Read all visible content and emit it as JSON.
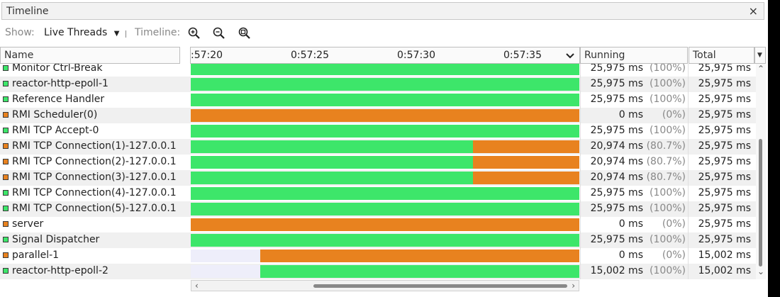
{
  "panel": {
    "title": "Timeline",
    "close_label": "×"
  },
  "toolbar": {
    "show_label": "Show:",
    "show_value": "Live Threads",
    "timeline_label": "Timeline:",
    "zoom_in": "zoom-in-icon",
    "zoom_out": "zoom-out-icon",
    "zoom_fit": "zoom-fit-icon"
  },
  "columns": {
    "name": "Name",
    "running": "Running",
    "total": "Total",
    "ticks": [
      ":57:20",
      "0:57:25",
      "0:57:30",
      "0:57:35"
    ]
  },
  "colors": {
    "running": "#3de66a",
    "other": "#e8821f"
  },
  "rows": [
    {
      "name": "Monitor Ctrl-Break",
      "state": "green",
      "running": "25,975 ms",
      "pct": "(100%)",
      "total": "25,975 ms",
      "start": 0,
      "green_end": 1
    },
    {
      "name": "reactor-http-epoll-1",
      "state": "green",
      "running": "25,975 ms",
      "pct": "(100%)",
      "total": "25,975 ms",
      "start": 0,
      "green_end": 1
    },
    {
      "name": "Reference Handler",
      "state": "green",
      "running": "25,975 ms",
      "pct": "(100%)",
      "total": "25,975 ms",
      "start": 0,
      "green_end": 1
    },
    {
      "name": "RMI Scheduler(0)",
      "state": "orange",
      "running": "0 ms",
      "pct": "(0%)",
      "total": "25,975 ms",
      "start": 0,
      "green_end": 0
    },
    {
      "name": "RMI TCP Accept-0",
      "state": "green",
      "running": "25,975 ms",
      "pct": "(100%)",
      "total": "25,975 ms",
      "start": 0,
      "green_end": 1
    },
    {
      "name": "RMI TCP Connection(1)-127.0.0.1",
      "state": "orange",
      "running": "20,974 ms",
      "pct": "(80.7%)",
      "total": "25,975 ms",
      "start": 0,
      "green_end": 0.726
    },
    {
      "name": "RMI TCP Connection(2)-127.0.0.1",
      "state": "orange",
      "running": "20,974 ms",
      "pct": "(80.7%)",
      "total": "25,975 ms",
      "start": 0,
      "green_end": 0.726
    },
    {
      "name": "RMI TCP Connection(3)-127.0.0.1",
      "state": "orange",
      "running": "20,974 ms",
      "pct": "(80.7%)",
      "total": "25,975 ms",
      "start": 0,
      "green_end": 0.726
    },
    {
      "name": "RMI TCP Connection(4)-127.0.0.1",
      "state": "green",
      "running": "25,975 ms",
      "pct": "(100%)",
      "total": "25,975 ms",
      "start": 0,
      "green_end": 1
    },
    {
      "name": "RMI TCP Connection(5)-127.0.0.1",
      "state": "green",
      "running": "25,975 ms",
      "pct": "(100%)",
      "total": "25,975 ms",
      "start": 0,
      "green_end": 1
    },
    {
      "name": "server",
      "state": "orange",
      "running": "0 ms",
      "pct": "(0%)",
      "total": "25,975 ms",
      "start": 0,
      "green_end": 0
    },
    {
      "name": "Signal Dispatcher",
      "state": "green",
      "running": "25,975 ms",
      "pct": "(100%)",
      "total": "25,975 ms",
      "start": 0,
      "green_end": 1
    },
    {
      "name": "parallel-1",
      "state": "orange",
      "running": "0 ms",
      "pct": "(0%)",
      "total": "15,002 ms",
      "start": 0.179,
      "green_end": 0.179
    },
    {
      "name": "reactor-http-epoll-2",
      "state": "green",
      "running": "15,002 ms",
      "pct": "(100%)",
      "total": "15,002 ms",
      "start": 0.179,
      "green_end": 1
    }
  ]
}
